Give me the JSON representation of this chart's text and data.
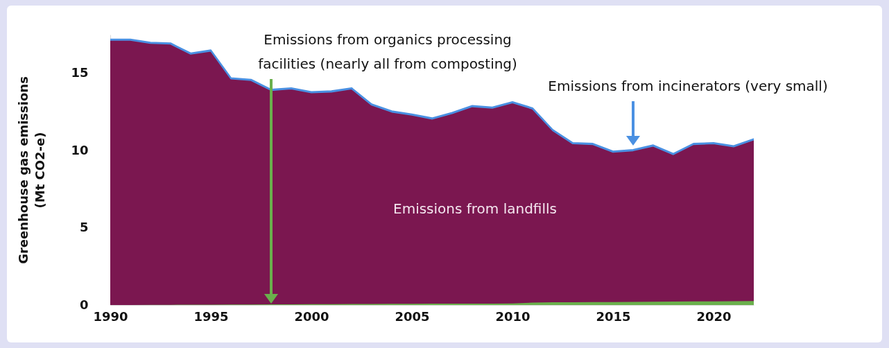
{
  "chart_data": {
    "type": "area",
    "stacked": true,
    "ylabel": "Greenhouse gas emissions\n(Mt CO2-e)",
    "x": [
      1990,
      1991,
      1992,
      1993,
      1994,
      1995,
      1996,
      1997,
      1998,
      1999,
      2000,
      2001,
      2002,
      2003,
      2004,
      2005,
      2006,
      2007,
      2008,
      2009,
      2010,
      2011,
      2012,
      2013,
      2014,
      2015,
      2016,
      2017,
      2018,
      2019,
      2020,
      2021,
      2022
    ],
    "series": [
      {
        "name": "Emissions from organics processing\nfacilities (nearly all from composting)",
        "color": "#6ab04c",
        "values": [
          0.05,
          0.05,
          0.06,
          0.06,
          0.07,
          0.07,
          0.08,
          0.08,
          0.09,
          0.09,
          0.1,
          0.1,
          0.11,
          0.11,
          0.12,
          0.12,
          0.13,
          0.13,
          0.14,
          0.14,
          0.15,
          0.2,
          0.22,
          0.22,
          0.23,
          0.24,
          0.25,
          0.26,
          0.27,
          0.28,
          0.28,
          0.29,
          0.3
        ]
      },
      {
        "name": "Emissions from landfills",
        "color": "#7b1750",
        "values": [
          17.1,
          17.1,
          16.89,
          16.84,
          16.18,
          16.38,
          14.57,
          14.47,
          13.81,
          13.91,
          13.65,
          13.7,
          13.89,
          12.84,
          12.38,
          12.18,
          11.92,
          12.27,
          12.71,
          12.61,
          12.95,
          12.5,
          11.08,
          10.23,
          10.17,
          9.66,
          9.75,
          10.04,
          9.48,
          10.12,
          10.17,
          9.96,
          10.4
        ]
      },
      {
        "name": "Emissions from incinerators (very small)",
        "color": "#4a90e2",
        "values": [
          0.05,
          0.05,
          0.05,
          0.05,
          0.05,
          0.05,
          0.05,
          0.05,
          0.05,
          0.05,
          0.05,
          0.05,
          0.05,
          0.05,
          0.05,
          0.05,
          0.05,
          0.05,
          0.05,
          0.05,
          0.05,
          0.05,
          0.05,
          0.05,
          0.05,
          0.05,
          0.05,
          0.05,
          0.05,
          0.05,
          0.05,
          0.05,
          0.05
        ]
      }
    ],
    "xlim": [
      1990,
      2022
    ],
    "xticks": [
      1990,
      1995,
      2000,
      2005,
      2010,
      2015,
      2020
    ],
    "ylim": [
      0,
      17.5
    ],
    "yticks": [
      0,
      5,
      10,
      15
    ],
    "grid": false,
    "legend": false
  }
}
